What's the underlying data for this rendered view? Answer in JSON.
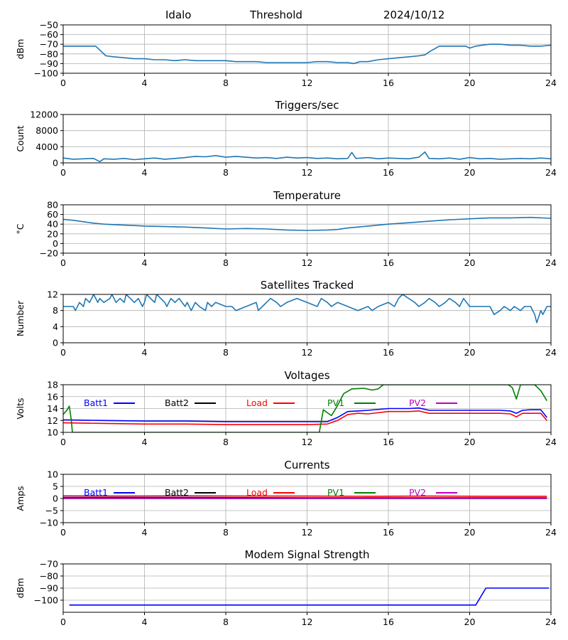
{
  "header": {
    "station": "Idalo",
    "mode": "Threshold",
    "date": "2024/10/12"
  },
  "chart_data": [
    {
      "type": "line",
      "title": "",
      "xlabel": "",
      "ylabel": "dBm",
      "xlim": [
        0,
        24
      ],
      "ylim": [
        -100,
        -50
      ],
      "xticks": [
        0,
        4,
        8,
        12,
        16,
        20,
        24
      ],
      "yticks": [
        -100,
        -90,
        -80,
        -70,
        -60,
        -50
      ],
      "ytick_labels": [
        "−100",
        "−90",
        "−80",
        "−70",
        "−60",
        "−50"
      ],
      "grid": true,
      "series": [
        {
          "color": "#1f77b4",
          "x": [
            0,
            1.6,
            1.9,
            2.1,
            2.5,
            3,
            3.5,
            4,
            4.5,
            5,
            5.5,
            6,
            6.5,
            7,
            7.5,
            8,
            8.5,
            9,
            9.5,
            10,
            10.5,
            11,
            11.5,
            12,
            12.5,
            13,
            13.5,
            14,
            14.3,
            14.6,
            15,
            15.5,
            16,
            16.5,
            17,
            17.5,
            17.8,
            18,
            18.5,
            19,
            19.5,
            19.8,
            20,
            20.3,
            20.6,
            21,
            21.5,
            22,
            22.5,
            23,
            23.5,
            24
          ],
          "y": [
            -72,
            -72,
            -78,
            -82,
            -83,
            -84,
            -85,
            -85,
            -86,
            -86,
            -87,
            -86,
            -87,
            -87,
            -87,
            -87,
            -88,
            -88,
            -88,
            -89,
            -89,
            -89,
            -89,
            -89,
            -88,
            -88,
            -89,
            -89,
            -90,
            -88,
            -88,
            -86,
            -85,
            -84,
            -83,
            -82,
            -81,
            -78,
            -72,
            -72,
            -72,
            -72,
            -74,
            -72,
            -71,
            -70,
            -70,
            -71,
            -71,
            -72,
            -72,
            -71
          ]
        }
      ]
    },
    {
      "type": "line",
      "title": "Triggers/sec",
      "xlabel": "",
      "ylabel": "Count",
      "xlim": [
        0,
        24
      ],
      "ylim": [
        0,
        12000
      ],
      "xticks": [
        0,
        4,
        8,
        12,
        16,
        20,
        24
      ],
      "yticks": [
        0,
        4000,
        8000,
        12000
      ],
      "ytick_labels": [
        "0",
        "4000",
        "8000",
        "12000"
      ],
      "grid": true,
      "series": [
        {
          "color": "#1f77b4",
          "x": [
            0,
            0.5,
            1,
            1.5,
            1.8,
            2,
            2.5,
            3,
            3.5,
            4,
            4.5,
            5,
            5.5,
            6,
            6.5,
            7,
            7.5,
            8,
            8.5,
            9,
            9.5,
            10,
            10.5,
            11,
            11.5,
            12,
            12.5,
            13,
            13.5,
            14,
            14.2,
            14.4,
            15,
            15.5,
            16,
            16.5,
            17,
            17.5,
            17.8,
            18,
            18.5,
            19,
            19.5,
            20,
            20.5,
            21,
            21.5,
            22,
            22.5,
            23,
            23.5,
            24
          ],
          "y": [
            1200,
            900,
            1000,
            1100,
            300,
            1000,
            900,
            1100,
            800,
            1000,
            1200,
            900,
            1100,
            1300,
            1600,
            1500,
            1800,
            1400,
            1600,
            1400,
            1200,
            1300,
            1100,
            1400,
            1200,
            1300,
            1100,
            1200,
            1000,
            1100,
            2600,
            1100,
            1300,
            1000,
            1200,
            1100,
            1000,
            1400,
            2700,
            1100,
            1000,
            1200,
            900,
            1300,
            1000,
            1100,
            900,
            1000,
            1100,
            1000,
            1200,
            1000
          ]
        }
      ]
    },
    {
      "type": "line",
      "title": "Temperature",
      "xlabel": "",
      "ylabel": "°C",
      "xlim": [
        0,
        24
      ],
      "ylim": [
        -20,
        80
      ],
      "xticks": [
        0,
        4,
        8,
        12,
        16,
        20,
        24
      ],
      "yticks": [
        -20,
        0,
        20,
        40,
        60,
        80
      ],
      "ytick_labels": [
        "−20",
        "0",
        "20",
        "40",
        "60",
        "80"
      ],
      "grid": true,
      "series": [
        {
          "color": "#1f77b4",
          "x": [
            0,
            0.5,
            1,
            1.5,
            2,
            2.5,
            3,
            3.5,
            4,
            5,
            6,
            7,
            8,
            9,
            10,
            11,
            12,
            13,
            13.5,
            14,
            15,
            16,
            17,
            18,
            19,
            20,
            21,
            22,
            23,
            24
          ],
          "y": [
            50,
            48,
            45,
            42,
            40,
            39,
            38,
            37,
            36,
            35,
            34,
            32,
            30,
            31,
            30,
            28,
            27,
            28,
            29,
            32,
            36,
            40,
            43,
            46,
            49,
            51,
            53,
            53,
            54,
            52
          ]
        }
      ]
    },
    {
      "type": "line",
      "title": "Satellites Tracked",
      "xlabel": "",
      "ylabel": "Number",
      "xlim": [
        0,
        24
      ],
      "ylim": [
        0,
        12
      ],
      "xticks": [
        0,
        4,
        8,
        12,
        16,
        20,
        24
      ],
      "yticks": [
        0,
        4,
        8,
        12
      ],
      "ytick_labels": [
        "0",
        "4",
        "8",
        "12"
      ],
      "grid": true,
      "series": [
        {
          "color": "#1f77b4",
          "x": [
            0,
            0.5,
            0.6,
            0.8,
            1,
            1.1,
            1.3,
            1.5,
            1.7,
            1.8,
            2,
            2.3,
            2.4,
            2.6,
            2.8,
            3,
            3.1,
            3.3,
            3.5,
            3.7,
            3.9,
            4,
            4.1,
            4.3,
            4.5,
            4.6,
            4.8,
            5,
            5.1,
            5.3,
            5.5,
            5.7,
            6,
            6.1,
            6.3,
            6.5,
            6.7,
            7,
            7.1,
            7.3,
            7.5,
            8,
            8.3,
            8.5,
            9,
            9.5,
            9.6,
            9.8,
            10,
            10.2,
            10.5,
            10.7,
            11,
            11.5,
            12,
            12.5,
            12.7,
            13,
            13.2,
            13.5,
            14,
            14.5,
            15,
            15.2,
            15.5,
            16,
            16.3,
            16.5,
            16.7,
            17,
            17.3,
            17.5,
            17.8,
            18,
            18.3,
            18.5,
            18.8,
            19,
            19.3,
            19.5,
            19.7,
            20,
            20.5,
            21,
            21.2,
            21.5,
            21.7,
            22,
            22.2,
            22.5,
            22.7,
            23,
            23.2,
            23.3,
            23.5,
            23.6,
            23.8,
            24
          ],
          "y": [
            9,
            9,
            8,
            10,
            9,
            11,
            10,
            12,
            10,
            11,
            10,
            11,
            12,
            10,
            11,
            10,
            12,
            11,
            10,
            11,
            9,
            10,
            12,
            11,
            10,
            12,
            11,
            10,
            9,
            11,
            10,
            11,
            9,
            10,
            8,
            10,
            9,
            8,
            10,
            9,
            10,
            9,
            9,
            8,
            9,
            10,
            8,
            9,
            10,
            11,
            10,
            9,
            10,
            11,
            10,
            9,
            11,
            10,
            9,
            10,
            9,
            8,
            9,
            8,
            9,
            10,
            9,
            11,
            12,
            11,
            10,
            9,
            10,
            11,
            10,
            9,
            10,
            11,
            10,
            9,
            11,
            9,
            9,
            9,
            7,
            8,
            9,
            8,
            9,
            8,
            9,
            9,
            7,
            5,
            8,
            7,
            9,
            9
          ]
        }
      ]
    },
    {
      "type": "line",
      "title": "Voltages",
      "xlabel": "",
      "ylabel": "Volts",
      "xlim": [
        0,
        24
      ],
      "ylim": [
        10,
        18
      ],
      "xticks": [
        0,
        4,
        8,
        12,
        16,
        20,
        24
      ],
      "yticks": [
        10,
        12,
        14,
        16,
        18
      ],
      "ytick_labels": [
        "10",
        "12",
        "14",
        "16",
        "18"
      ],
      "grid": true,
      "legend": "top, one row",
      "series": [
        {
          "name": "Batt1",
          "color": "#0000ff",
          "x": [
            0,
            2,
            4,
            6,
            8,
            10,
            12,
            13,
            13.5,
            14,
            14.5,
            15,
            16,
            17,
            17.5,
            18,
            19,
            20,
            21,
            21.5,
            22,
            22.3,
            22.6,
            23,
            23.5,
            23.8
          ],
          "y": [
            12.1,
            12.0,
            11.9,
            11.9,
            11.8,
            11.8,
            11.8,
            11.8,
            12.5,
            13.5,
            13.6,
            13.7,
            14.0,
            14.0,
            14.1,
            13.7,
            13.7,
            13.7,
            13.7,
            13.7,
            13.6,
            13.2,
            13.7,
            13.8,
            13.8,
            12.5
          ]
        },
        {
          "name": "Batt2",
          "color": "#000000",
          "x": [],
          "y": []
        },
        {
          "name": "Load",
          "color": "#ff0000",
          "x": [
            0,
            2,
            4,
            6,
            8,
            10,
            12,
            13,
            13.5,
            14,
            14.5,
            15,
            16,
            17,
            17.5,
            18,
            19,
            20,
            21,
            21.5,
            22,
            22.3,
            22.6,
            23,
            23.5,
            23.8
          ],
          "y": [
            11.6,
            11.5,
            11.4,
            11.4,
            11.3,
            11.3,
            11.3,
            11.4,
            12.0,
            13.0,
            13.2,
            13.1,
            13.5,
            13.5,
            13.6,
            13.2,
            13.2,
            13.2,
            13.2,
            13.2,
            13.1,
            12.6,
            13.2,
            13.2,
            13.2,
            12.0
          ]
        },
        {
          "name": "PV1",
          "color": "#008000",
          "x": [
            0,
            0.2,
            0.3,
            0.4,
            0.45,
            12.6,
            12.8,
            13.0,
            13.2,
            13.5,
            13.8,
            14.2,
            14.8,
            15.2,
            15.5,
            15.75,
            21.9,
            22.1,
            22.3,
            22.5,
            22.8,
            23.2,
            23.5,
            23.8
          ],
          "y": [
            13.0,
            13.8,
            14.4,
            12.0,
            10.0,
            10.0,
            13.8,
            13.3,
            12.8,
            14.5,
            16.5,
            17.3,
            17.4,
            17.1,
            17.3,
            18.0,
            18.0,
            17.5,
            15.6,
            18.0,
            18.0,
            18.0,
            17.0,
            15.3
          ]
        },
        {
          "name": "PV2",
          "color": "#bf00bf",
          "x": [],
          "y": []
        }
      ]
    },
    {
      "type": "line",
      "title": "Currents",
      "xlabel": "",
      "ylabel": "Amps",
      "xlim": [
        0,
        24
      ],
      "ylim": [
        -10,
        10
      ],
      "xticks": [
        0,
        4,
        8,
        12,
        16,
        20,
        24
      ],
      "yticks": [
        -10,
        -5,
        0,
        5,
        10
      ],
      "ytick_labels": [
        "−10",
        "−5",
        "0",
        "5",
        "10"
      ],
      "grid": true,
      "legend": "top, one row",
      "series": [
        {
          "name": "Batt1",
          "color": "#0000ff",
          "x": [
            0,
            6,
            12,
            18,
            23.8
          ],
          "y": [
            0.4,
            0.4,
            0.3,
            0.3,
            0.3
          ]
        },
        {
          "name": "Batt2",
          "color": "#000000",
          "x": [],
          "y": []
        },
        {
          "name": "Load",
          "color": "#ff0000",
          "x": [
            0,
            3,
            6,
            9,
            12,
            15,
            18,
            21,
            23.8
          ],
          "y": [
            1.1,
            1.0,
            1.1,
            1.0,
            1.0,
            0.9,
            1.0,
            0.9,
            0.9
          ]
        },
        {
          "name": "PV1",
          "color": "#008000",
          "x": [
            0,
            23.8
          ],
          "y": [
            0.0,
            0.0
          ]
        },
        {
          "name": "PV2",
          "color": "#bf00bf",
          "x": [
            0,
            23.8
          ],
          "y": [
            0.0,
            0.0
          ]
        }
      ]
    },
    {
      "type": "line",
      "title": "Modem Signal Strength",
      "xlabel": "",
      "ylabel": "dBm",
      "xlim": [
        0,
        24
      ],
      "ylim": [
        -110,
        -70
      ],
      "xticks": [
        0,
        4,
        8,
        12,
        16,
        20,
        24
      ],
      "yticks": [
        -100,
        -90,
        -80,
        -70
      ],
      "ytick_labels": [
        "−100",
        "−90",
        "−80",
        "−70"
      ],
      "grid": true,
      "series": [
        {
          "color": "#0000ff",
          "x": [
            0.3,
            20.3,
            20.8,
            23.9
          ],
          "y": [
            -104,
            -104,
            -90,
            -90
          ]
        }
      ]
    }
  ]
}
